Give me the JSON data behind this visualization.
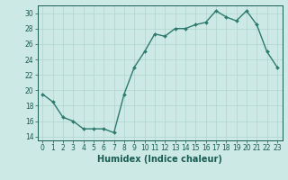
{
  "x": [
    0,
    1,
    2,
    3,
    4,
    5,
    6,
    7,
    8,
    9,
    10,
    11,
    12,
    13,
    14,
    15,
    16,
    17,
    18,
    19,
    20,
    21,
    22,
    23
  ],
  "y": [
    19.5,
    18.5,
    16.5,
    16.0,
    15.0,
    15.0,
    15.0,
    14.5,
    19.5,
    23.0,
    25.0,
    27.3,
    27.0,
    28.0,
    28.0,
    28.5,
    28.8,
    30.3,
    29.5,
    29.0,
    30.3,
    28.5,
    25.0,
    23.0
  ],
  "line_color": "#2d7a6e",
  "marker": "D",
  "marker_size": 2.0,
  "bg_color": "#cce9e5",
  "grid_color": "#aed4cf",
  "xlabel": "Humidex (Indice chaleur)",
  "xlabel_fontsize": 7,
  "ylim": [
    13.5,
    31
  ],
  "xlim": [
    -0.5,
    23.5
  ],
  "yticks": [
    14,
    16,
    18,
    20,
    22,
    24,
    26,
    28,
    30
  ],
  "xticks": [
    0,
    1,
    2,
    3,
    4,
    5,
    6,
    7,
    8,
    9,
    10,
    11,
    12,
    13,
    14,
    15,
    16,
    17,
    18,
    19,
    20,
    21,
    22,
    23
  ],
  "tick_color": "#1a5c52",
  "tick_fontsize": 5.5,
  "line_width": 1.0
}
